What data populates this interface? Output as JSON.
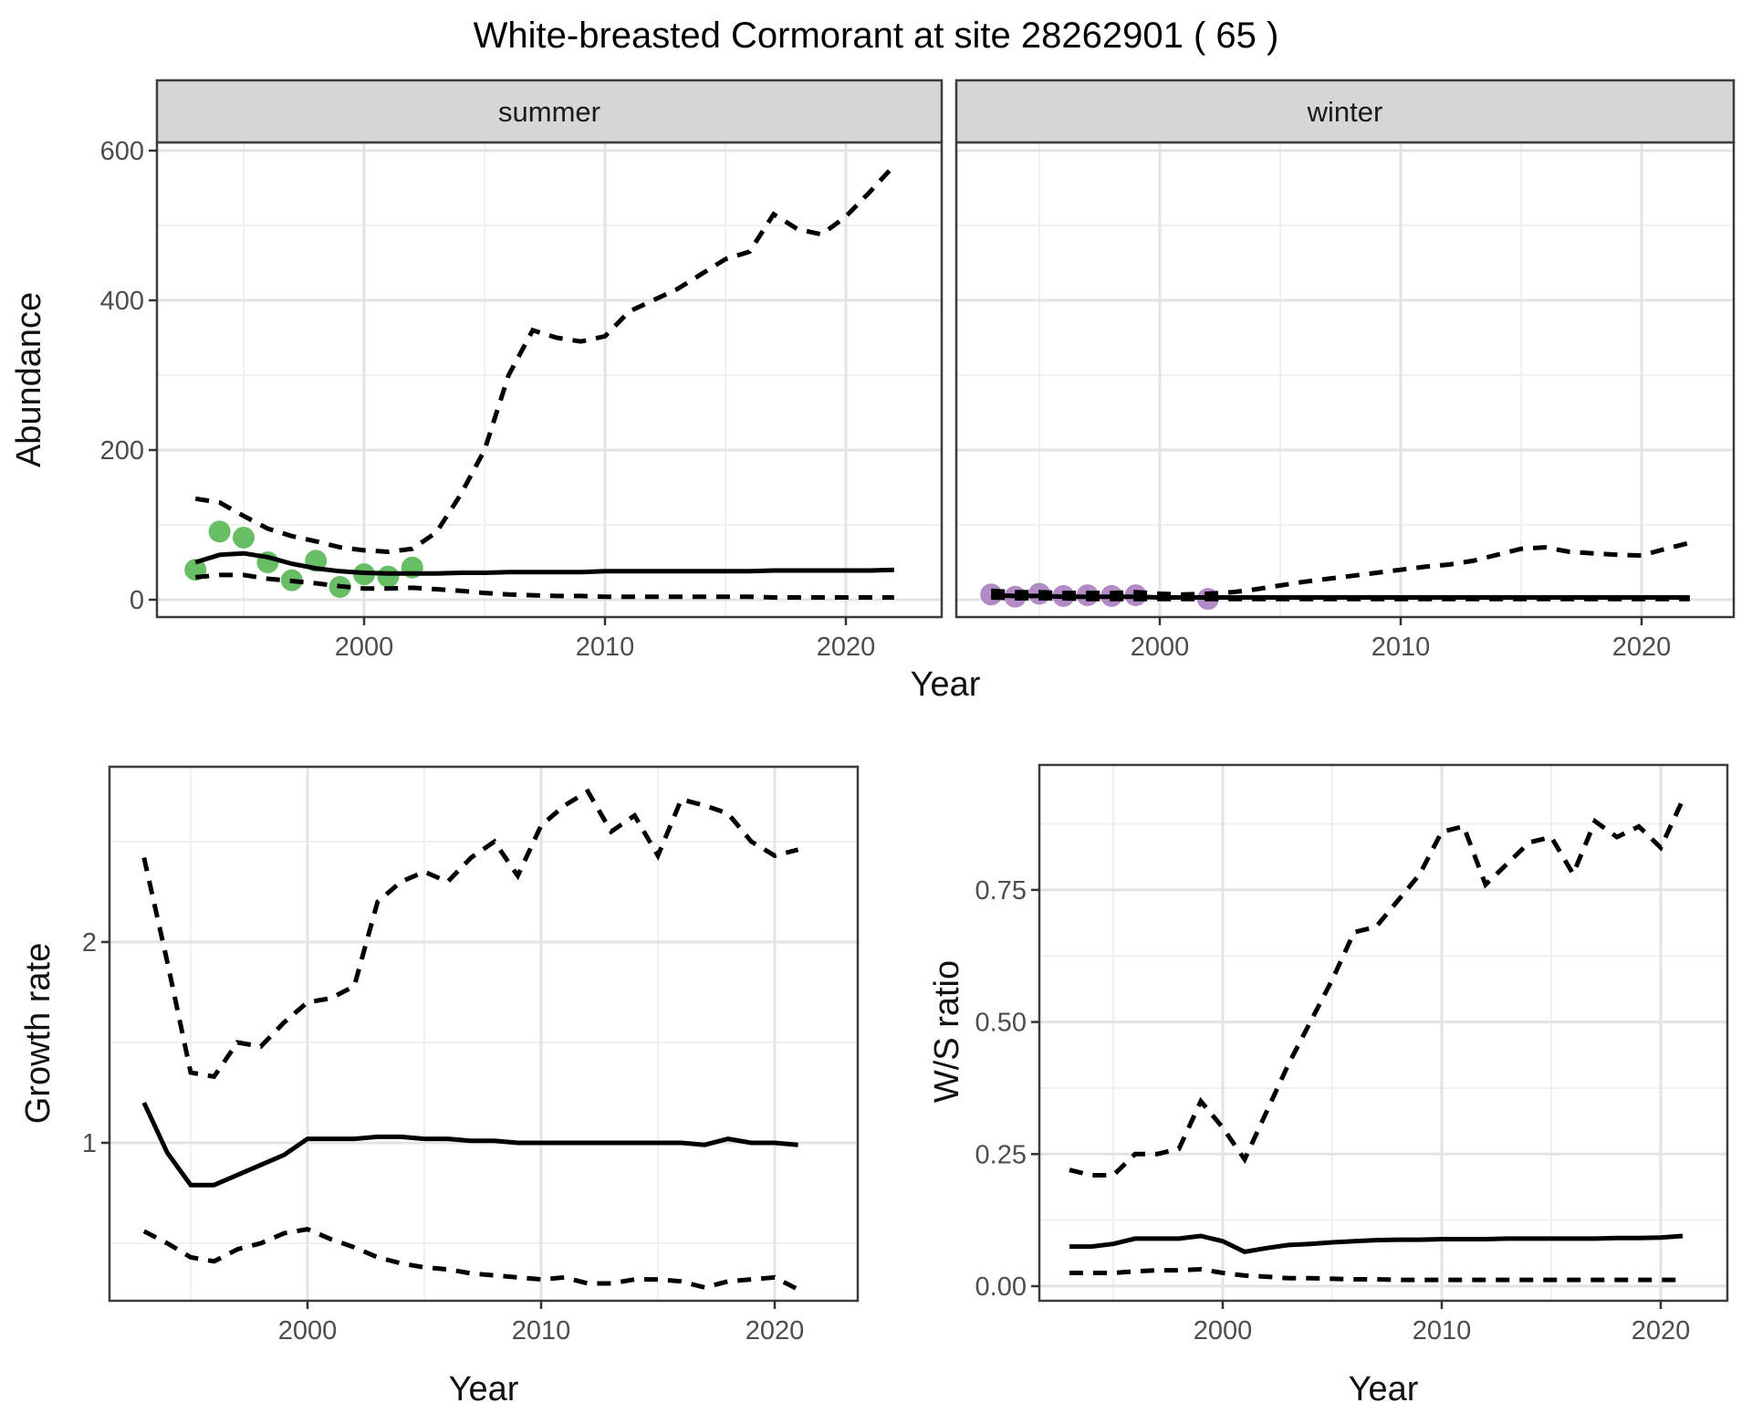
{
  "title": "White-breasted Cormorant at site 28262901 ( 65 )",
  "colors": {
    "summer_points": "#68BE64",
    "winter_points": "#B28AC6",
    "line": "#000000",
    "grid_major": "#E3E3E3",
    "grid_minor": "#F0F0F0",
    "strip_fill": "#D6D6D6",
    "panel_border": "#3C3C3C",
    "tick_text": "#4D4D4D"
  },
  "chart_data": [
    {
      "id": "abundance_summer",
      "type": "line",
      "facet_label": "summer",
      "x_label": "Year",
      "y_label": "Abundance",
      "x_ticks": [
        2000,
        2010,
        2020
      ],
      "x_tick_labels": [
        "2000",
        "2010",
        "2020"
      ],
      "x_minor": [
        1995,
        2005,
        2015
      ],
      "y_ticks": [
        0,
        200,
        400,
        600
      ],
      "y_tick_labels": [
        "0",
        "200",
        "400",
        "600"
      ],
      "y_minor": [
        100,
        300,
        500
      ],
      "xlim": [
        1991.4,
        2024
      ],
      "ylim": [
        -23,
        611
      ],
      "grid": true,
      "legend_position": "none",
      "observed_points": {
        "years": [
          1993,
          1994,
          1995,
          1996,
          1997,
          1998,
          1999,
          2000,
          2001,
          2002
        ],
        "values": [
          40,
          91,
          83,
          50,
          26,
          52,
          17,
          34,
          31,
          43
        ]
      },
      "fit_years": [
        1993,
        1994,
        1995,
        1996,
        1997,
        1998,
        1999,
        2000,
        2001,
        2002,
        2003,
        2004,
        2005,
        2006,
        2007,
        2008,
        2009,
        2010,
        2011,
        2012,
        2013,
        2014,
        2015,
        2016,
        2017,
        2018,
        2019,
        2020,
        2021,
        2022
      ],
      "upper_ci": [
        135,
        130,
        112,
        95,
        85,
        78,
        70,
        66,
        64,
        68,
        90,
        140,
        200,
        300,
        360,
        350,
        345,
        352,
        385,
        400,
        415,
        435,
        455,
        465,
        515,
        495,
        488,
        512,
        545,
        580
      ],
      "median": [
        50,
        60,
        62,
        57,
        48,
        42,
        38,
        36,
        35,
        35,
        35,
        36,
        36,
        37,
        37,
        37,
        37,
        38,
        38,
        38,
        38,
        38,
        38,
        38,
        39,
        39,
        39,
        39,
        39,
        40
      ],
      "lower_ci": [
        30,
        33,
        33,
        28,
        25,
        22,
        18,
        15,
        15,
        16,
        14,
        12,
        9,
        7,
        6,
        5,
        5,
        4,
        4,
        4,
        4,
        4,
        4,
        4,
        3,
        3,
        3,
        3,
        3,
        3
      ]
    },
    {
      "id": "abundance_winter",
      "type": "line",
      "facet_label": "winter",
      "x_label": "Year",
      "y_label": "Abundance",
      "x_ticks": [
        2000,
        2010,
        2020
      ],
      "x_tick_labels": [
        "2000",
        "2010",
        "2020"
      ],
      "x_minor": [
        1995,
        2005,
        2015
      ],
      "y_ticks": [
        0,
        200,
        400,
        600
      ],
      "y_tick_labels": [
        "0",
        "200",
        "400",
        "600"
      ],
      "y_minor": [
        100,
        300,
        500
      ],
      "xlim": [
        1991.5,
        2023.8
      ],
      "ylim": [
        -23,
        611
      ],
      "grid": true,
      "legend_position": "none",
      "observed_points": {
        "years": [
          1993,
          1994,
          1995,
          1996,
          1997,
          1998,
          1999,
          2002
        ],
        "values": [
          7,
          4,
          8,
          5,
          6,
          5,
          6,
          1
        ]
      },
      "fit_years": [
        1993,
        1994,
        1995,
        1996,
        1997,
        1998,
        1999,
        2000,
        2001,
        2002,
        2003,
        2004,
        2005,
        2006,
        2007,
        2008,
        2009,
        2010,
        2011,
        2012,
        2013,
        2014,
        2015,
        2016,
        2017,
        2018,
        2019,
        2020,
        2021,
        2022
      ],
      "upper_ci": [
        12,
        10,
        10,
        9,
        9,
        9,
        10,
        8,
        7,
        8,
        10,
        14,
        19,
        24,
        28,
        32,
        36,
        40,
        44,
        47,
        52,
        60,
        68,
        70,
        64,
        62,
        60,
        59,
        68,
        76
      ],
      "median": [
        6,
        5,
        5,
        4,
        4,
        4,
        4,
        3,
        3,
        3,
        3,
        3,
        3,
        3,
        3,
        3,
        3,
        3,
        3,
        3,
        3,
        3,
        3,
        3,
        3,
        3,
        3,
        3,
        3,
        3
      ],
      "lower_ci": [
        3,
        2,
        2,
        2,
        1,
        1,
        1,
        1,
        1,
        1,
        1,
        1,
        1,
        1,
        1,
        1,
        1,
        1,
        1,
        1,
        1,
        1,
        1,
        1,
        1,
        1,
        1,
        1,
        1,
        1
      ]
    },
    {
      "id": "growth_rate",
      "type": "line",
      "facet_label": "",
      "x_label": "Year",
      "y_label": "Growth rate",
      "x_ticks": [
        2000,
        2010,
        2020
      ],
      "x_tick_labels": [
        "2000",
        "2010",
        "2020"
      ],
      "x_minor": [
        1995,
        2005,
        2015
      ],
      "y_ticks": [
        1,
        2
      ],
      "y_tick_labels": [
        "1",
        "2"
      ],
      "y_minor": [
        0.5,
        1.5,
        2.5
      ],
      "xlim": [
        1991.5,
        2023.6
      ],
      "ylim": [
        0.21,
        2.87
      ],
      "grid": true,
      "legend_position": "none",
      "observed_points": {
        "years": [],
        "values": []
      },
      "fit_years": [
        1993,
        1994,
        1995,
        1996,
        1997,
        1998,
        1999,
        2000,
        2001,
        2002,
        2003,
        2004,
        2005,
        2006,
        2007,
        2008,
        2009,
        2010,
        2011,
        2012,
        2013,
        2014,
        2015,
        2016,
        2017,
        2018,
        2019,
        2020,
        2021
      ],
      "upper_ci": [
        2.42,
        1.9,
        1.35,
        1.33,
        1.5,
        1.48,
        1.6,
        1.7,
        1.72,
        1.78,
        2.2,
        2.3,
        2.35,
        2.3,
        2.42,
        2.5,
        2.33,
        2.58,
        2.68,
        2.75,
        2.55,
        2.63,
        2.43,
        2.71,
        2.68,
        2.64,
        2.5,
        2.43,
        2.46
      ],
      "median": [
        1.2,
        0.95,
        0.79,
        0.79,
        0.84,
        0.89,
        0.94,
        1.02,
        1.02,
        1.02,
        1.03,
        1.03,
        1.02,
        1.02,
        1.01,
        1.01,
        1.0,
        1.0,
        1.0,
        1.0,
        1.0,
        1.0,
        1.0,
        1.0,
        0.99,
        1.02,
        1.0,
        1.0,
        0.99
      ],
      "lower_ci": [
        0.56,
        0.5,
        0.43,
        0.41,
        0.47,
        0.5,
        0.55,
        0.57,
        0.52,
        0.48,
        0.43,
        0.4,
        0.38,
        0.37,
        0.35,
        0.34,
        0.33,
        0.32,
        0.33,
        0.3,
        0.3,
        0.32,
        0.32,
        0.31,
        0.28,
        0.31,
        0.32,
        0.33,
        0.27
      ]
    },
    {
      "id": "ws_ratio",
      "type": "line",
      "facet_label": "",
      "x_label": "Year",
      "y_label": "W/S ratio",
      "x_ticks": [
        2000,
        2010,
        2020
      ],
      "x_tick_labels": [
        "2000",
        "2010",
        "2020"
      ],
      "x_minor": [
        1995,
        2005,
        2015
      ],
      "y_ticks": [
        0,
        0.25,
        0.5,
        0.75
      ],
      "y_tick_labels": [
        "0.00",
        "0.25",
        "0.50",
        "0.75"
      ],
      "y_minor": [
        0.125,
        0.375,
        0.625,
        0.875
      ],
      "xlim": [
        1991.6,
        2023.0
      ],
      "ylim": [
        -0.028,
        0.99
      ],
      "grid": true,
      "legend_position": "none",
      "observed_points": {
        "years": [],
        "values": []
      },
      "fit_years": [
        1993,
        1994,
        1995,
        1996,
        1997,
        1998,
        1999,
        2000,
        2001,
        2002,
        2003,
        2004,
        2005,
        2006,
        2007,
        2008,
        2009,
        2010,
        2011,
        2012,
        2013,
        2014,
        2015,
        2016,
        2017,
        2018,
        2019,
        2020,
        2021
      ],
      "upper_ci": [
        0.22,
        0.21,
        0.21,
        0.25,
        0.25,
        0.26,
        0.35,
        0.3,
        0.24,
        0.33,
        0.42,
        0.5,
        0.58,
        0.67,
        0.68,
        0.73,
        0.78,
        0.86,
        0.87,
        0.76,
        0.8,
        0.84,
        0.85,
        0.78,
        0.88,
        0.85,
        0.87,
        0.83,
        0.92
      ],
      "median": [
        0.075,
        0.075,
        0.08,
        0.09,
        0.09,
        0.09,
        0.095,
        0.085,
        0.065,
        0.072,
        0.078,
        0.08,
        0.083,
        0.085,
        0.087,
        0.088,
        0.088,
        0.089,
        0.089,
        0.089,
        0.09,
        0.09,
        0.09,
        0.09,
        0.09,
        0.091,
        0.091,
        0.092,
        0.095
      ],
      "lower_ci": [
        0.025,
        0.025,
        0.025,
        0.028,
        0.03,
        0.03,
        0.032,
        0.025,
        0.02,
        0.018,
        0.015,
        0.015,
        0.014,
        0.013,
        0.013,
        0.012,
        0.012,
        0.012,
        0.012,
        0.012,
        0.012,
        0.012,
        0.012,
        0.012,
        0.012,
        0.012,
        0.012,
        0.012,
        0.012
      ]
    }
  ]
}
